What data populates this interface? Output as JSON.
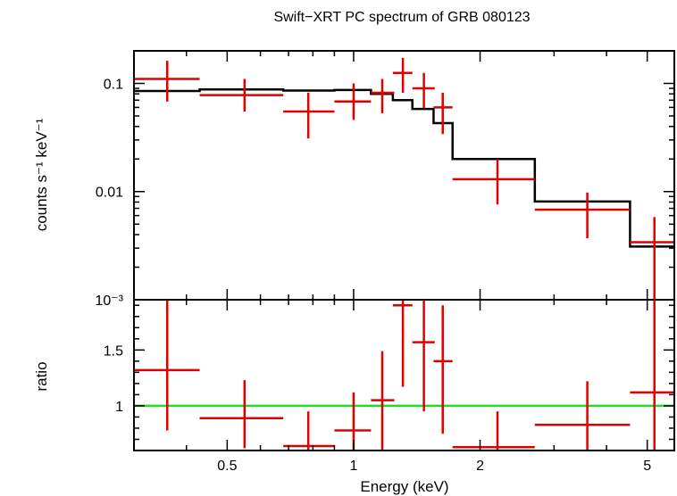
{
  "chart_data": {
    "type": "line",
    "title": "Swift−XRT PC spectrum of GRB 080123",
    "xlabel": "Energy (keV)",
    "xscale": "log",
    "xlim": [
      0.3,
      5.8
    ],
    "x_ticks": [
      {
        "value": 0.5,
        "label": "0.5"
      },
      {
        "value": 1,
        "label": "1"
      },
      {
        "value": 2,
        "label": "2"
      },
      {
        "value": 5,
        "label": "5"
      }
    ],
    "colors": {
      "data": "#e00000",
      "model": "#000000",
      "unity": "#22dd22"
    },
    "panels": [
      {
        "name": "spectrum",
        "ylabel": "counts s⁻¹ keV⁻¹",
        "yscale": "log",
        "ylim": [
          0.001,
          0.2
        ],
        "y_ticks": [
          {
            "value": 0.1,
            "label": "0.1"
          },
          {
            "value": 0.01,
            "label": "0.01"
          },
          {
            "value": 0.001,
            "label": "10⁻³"
          }
        ],
        "data_points": [
          {
            "x": 0.36,
            "xlo": 0.3,
            "xhi": 0.43,
            "y": 0.11,
            "ylo": 0.068,
            "yhi": 0.162
          },
          {
            "x": 0.55,
            "xlo": 0.43,
            "xhi": 0.68,
            "y": 0.078,
            "ylo": 0.055,
            "yhi": 0.11
          },
          {
            "x": 0.78,
            "xlo": 0.68,
            "xhi": 0.9,
            "y": 0.055,
            "ylo": 0.031,
            "yhi": 0.082
          },
          {
            "x": 1.0,
            "xlo": 0.9,
            "xhi": 1.1,
            "y": 0.068,
            "ylo": 0.046,
            "yhi": 0.1
          },
          {
            "x": 1.17,
            "xlo": 1.1,
            "xhi": 1.25,
            "y": 0.082,
            "ylo": 0.053,
            "yhi": 0.11
          },
          {
            "x": 1.31,
            "xlo": 1.24,
            "xhi": 1.38,
            "y": 0.125,
            "ylo": 0.082,
            "yhi": 0.172
          },
          {
            "x": 1.47,
            "xlo": 1.38,
            "xhi": 1.56,
            "y": 0.09,
            "ylo": 0.059,
            "yhi": 0.125
          },
          {
            "x": 1.63,
            "xlo": 1.55,
            "xhi": 1.72,
            "y": 0.06,
            "ylo": 0.034,
            "yhi": 0.082
          },
          {
            "x": 2.2,
            "xlo": 1.72,
            "xhi": 2.7,
            "y": 0.013,
            "ylo": 0.0076,
            "yhi": 0.02
          },
          {
            "x": 3.6,
            "xlo": 2.7,
            "xhi": 4.55,
            "y": 0.0068,
            "ylo": 0.0037,
            "yhi": 0.0098
          },
          {
            "x": 5.2,
            "xlo": 4.55,
            "xhi": 5.8,
            "y": 0.0034,
            "ylo": 0.001,
            "yhi": 0.0058
          }
        ],
        "model_steps": [
          {
            "xlo": 0.3,
            "xhi": 0.43,
            "y": 0.085
          },
          {
            "xlo": 0.43,
            "xhi": 0.68,
            "y": 0.088
          },
          {
            "xlo": 0.68,
            "xhi": 0.9,
            "y": 0.086
          },
          {
            "xlo": 0.9,
            "xhi": 1.1,
            "y": 0.087
          },
          {
            "xlo": 1.1,
            "xhi": 1.24,
            "y": 0.08
          },
          {
            "xlo": 1.24,
            "xhi": 1.38,
            "y": 0.07
          },
          {
            "xlo": 1.38,
            "xhi": 1.55,
            "y": 0.058
          },
          {
            "xlo": 1.55,
            "xhi": 1.72,
            "y": 0.043
          },
          {
            "xlo": 1.72,
            "xhi": 2.7,
            "y": 0.02
          },
          {
            "xlo": 2.7,
            "xhi": 4.55,
            "y": 0.0081
          },
          {
            "xlo": 4.55,
            "xhi": 5.8,
            "y": 0.0031
          }
        ]
      },
      {
        "name": "ratio",
        "ylabel": "ratio",
        "yscale": "linear",
        "ylim": [
          0.6,
          1.95
        ],
        "y_ticks": [
          {
            "value": 1,
            "label": "1"
          },
          {
            "value": 1.5,
            "label": "1.5"
          }
        ],
        "y_ticks_unlabeled": [
          2
        ],
        "reference_line": 1,
        "data_points": [
          {
            "x": 0.36,
            "xlo": 0.3,
            "xhi": 0.43,
            "y": 1.32,
            "ylo": 0.78,
            "yhi": 1.95
          },
          {
            "x": 0.55,
            "xlo": 0.43,
            "xhi": 0.68,
            "y": 0.89,
            "ylo": 0.62,
            "yhi": 1.23
          },
          {
            "x": 0.78,
            "xlo": 0.68,
            "xhi": 0.9,
            "y": 0.64,
            "ylo": 0.6,
            "yhi": 0.95
          },
          {
            "x": 1.0,
            "xlo": 0.9,
            "xhi": 1.1,
            "y": 0.78,
            "ylo": 0.6,
            "yhi": 1.12
          },
          {
            "x": 1.17,
            "xlo": 1.1,
            "xhi": 1.25,
            "y": 1.05,
            "ylo": 0.6,
            "yhi": 1.49
          },
          {
            "x": 1.31,
            "xlo": 1.24,
            "xhi": 1.38,
            "y": 1.9,
            "ylo": 1.17,
            "yhi": 1.95
          },
          {
            "x": 1.47,
            "xlo": 1.38,
            "xhi": 1.56,
            "y": 1.57,
            "ylo": 0.95,
            "yhi": 1.95
          },
          {
            "x": 1.63,
            "xlo": 1.55,
            "xhi": 1.72,
            "y": 1.4,
            "ylo": 0.75,
            "yhi": 1.9
          },
          {
            "x": 2.2,
            "xlo": 1.72,
            "xhi": 2.7,
            "y": 0.63,
            "ylo": 0.6,
            "yhi": 0.95
          },
          {
            "x": 3.6,
            "xlo": 2.7,
            "xhi": 4.55,
            "y": 0.83,
            "ylo": 0.6,
            "yhi": 1.22
          },
          {
            "x": 5.2,
            "xlo": 4.55,
            "xhi": 5.8,
            "y": 1.12,
            "ylo": 0.6,
            "yhi": 1.95
          }
        ]
      }
    ]
  }
}
